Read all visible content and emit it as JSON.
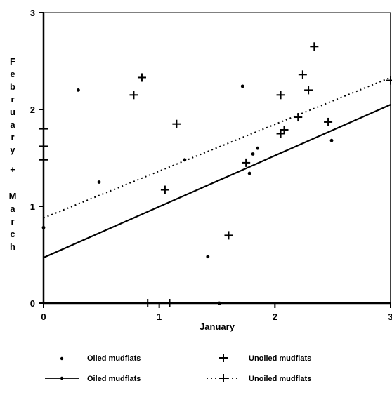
{
  "chart_data": {
    "type": "scatter",
    "title": "",
    "xlabel": "January",
    "ylabel": "February + March",
    "xlim": [
      0,
      3
    ],
    "ylim": [
      0,
      3
    ],
    "xticks": [
      "0",
      "1",
      "2",
      "3"
    ],
    "yticks": [
      "0",
      "1",
      "2",
      "3"
    ],
    "grid": false,
    "legend_position": "bottom",
    "series": [
      {
        "name": "Oiled mudflats",
        "kind": "points",
        "marker": "dot",
        "points": [
          [
            0.0,
            0.78
          ],
          [
            0.3,
            2.2
          ],
          [
            0.48,
            1.25
          ],
          [
            1.22,
            1.48
          ],
          [
            1.42,
            0.48
          ],
          [
            1.52,
            0.0
          ],
          [
            1.72,
            2.24
          ],
          [
            1.78,
            1.34
          ],
          [
            1.81,
            1.54
          ],
          [
            1.85,
            1.6
          ],
          [
            2.49,
            1.68
          ]
        ]
      },
      {
        "name": "Unoiled mudflats",
        "kind": "points",
        "marker": "plus",
        "points": [
          [
            0.0,
            1.8
          ],
          [
            0.0,
            1.62
          ],
          [
            0.0,
            1.48
          ],
          [
            0.0,
            0.0
          ],
          [
            0.78,
            2.15
          ],
          [
            0.85,
            2.33
          ],
          [
            0.9,
            0.0
          ],
          [
            1.05,
            1.17
          ],
          [
            1.09,
            0.0
          ],
          [
            1.15,
            1.85
          ],
          [
            1.6,
            0.7
          ],
          [
            1.75,
            1.45
          ],
          [
            2.05,
            2.15
          ],
          [
            2.05,
            1.75
          ],
          [
            2.08,
            1.79
          ],
          [
            2.2,
            1.92
          ],
          [
            2.24,
            2.36
          ],
          [
            2.29,
            2.2
          ],
          [
            2.34,
            2.65
          ],
          [
            2.46,
            1.87
          ],
          [
            3.0,
            2.3
          ]
        ]
      },
      {
        "name": "Oiled mudflats",
        "kind": "line",
        "style": "solid",
        "line": [
          [
            0,
            0.47
          ],
          [
            3,
            2.05
          ]
        ]
      },
      {
        "name": "Unoiled mudflats",
        "kind": "line",
        "style": "dotted",
        "line": [
          [
            0,
            0.88
          ],
          [
            3,
            2.33
          ]
        ]
      }
    ],
    "legend": [
      {
        "label": "Oiled mudflats",
        "symbol": "dot"
      },
      {
        "label": "Unoiled mudflats",
        "symbol": "plus"
      },
      {
        "label": "Oiled mudflats",
        "symbol": "solid-line"
      },
      {
        "label": "Unoiled mudflats",
        "symbol": "dotted-line"
      }
    ],
    "colors": {
      "ink": "#000000",
      "background": "#ffffff"
    }
  }
}
